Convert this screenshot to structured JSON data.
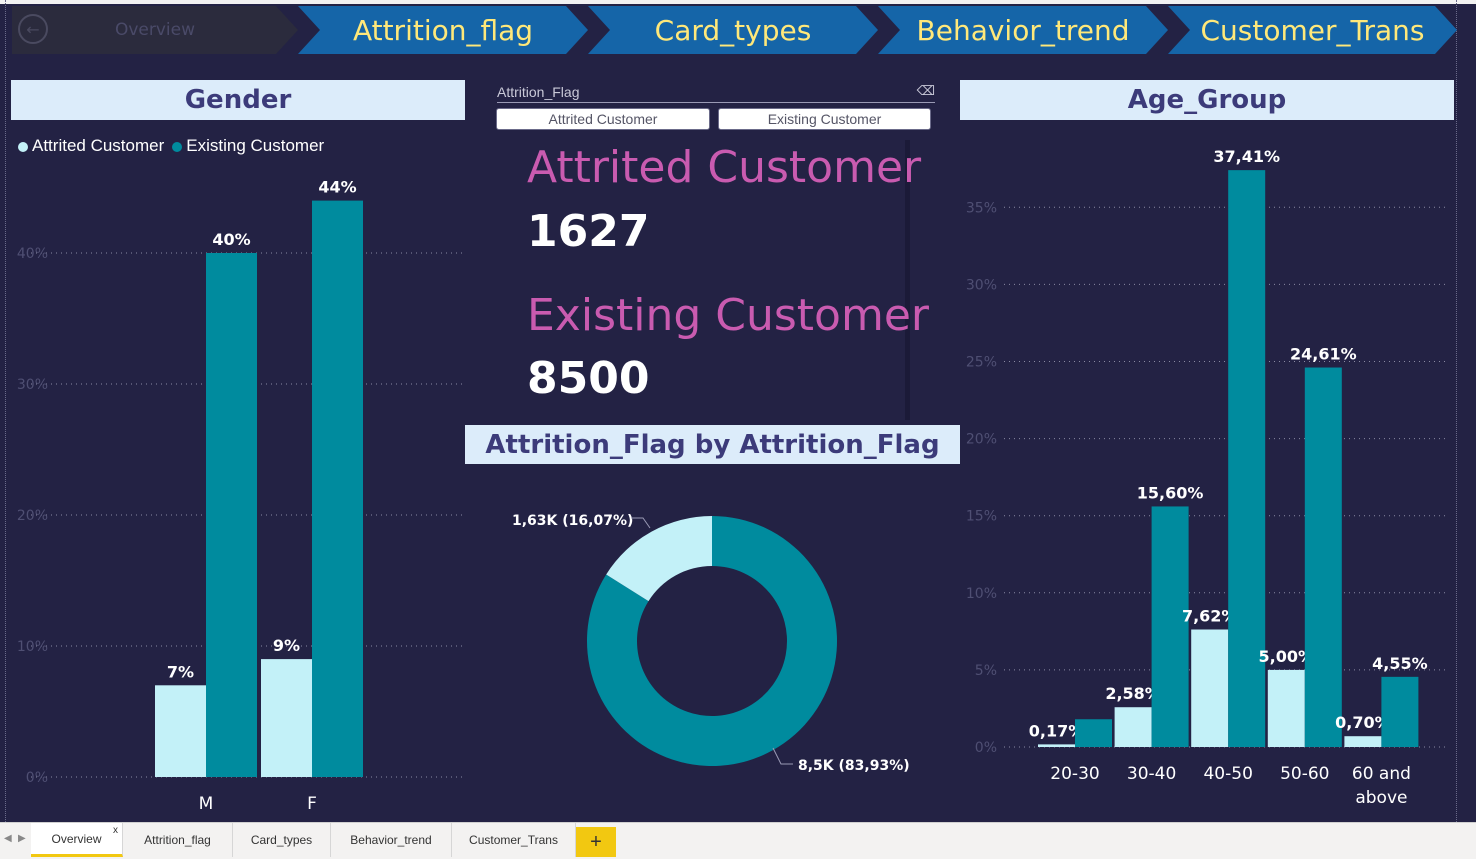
{
  "nav": {
    "items": [
      {
        "label": "Overview"
      },
      {
        "label": "Attrition_flag"
      },
      {
        "label": "Card_types"
      },
      {
        "label": "Behavior_trend"
      },
      {
        "label": "Customer_Trans"
      }
    ]
  },
  "gender": {
    "title": "Gender",
    "legend": [
      "Attrited Customer",
      "Existing Customer"
    ],
    "colors": {
      "attrited": "#c3f1f8",
      "existing": "#008b9e"
    }
  },
  "slicer": {
    "header": "Attrition_Flag",
    "options": [
      "Attrited Customer",
      "Existing Customer"
    ]
  },
  "cards": [
    {
      "label": "Attrited Customer",
      "value": "1627"
    },
    {
      "label": "Existing Customer",
      "value": "8500"
    }
  ],
  "donut": {
    "title": "Attrition_Flag by Attrition_Flag",
    "labels": [
      "1,63K (16,07%)",
      "8,5K (83,93%)"
    ]
  },
  "age": {
    "title": "Age_Group"
  },
  "tabs": [
    "Overview",
    "Attrition_flag",
    "Card_types",
    "Behavior_trend",
    "Customer_Trans"
  ],
  "add_tab": "+",
  "chart_data": [
    {
      "type": "bar",
      "title": "Gender",
      "categories": [
        "M",
        "F"
      ],
      "series": [
        {
          "name": "Attrited Customer",
          "values": [
            7,
            9
          ],
          "labels": [
            "7%",
            "9%"
          ]
        },
        {
          "name": "Existing Customer",
          "values": [
            40,
            44
          ],
          "labels": [
            "40%",
            "44%"
          ]
        }
      ],
      "ylim": [
        0,
        47
      ],
      "yticks": [
        0,
        10,
        20,
        30,
        40
      ],
      "ytick_labels": [
        "0%",
        "10%",
        "20%",
        "30%",
        "40%"
      ],
      "grid": true,
      "legend": "top-left"
    },
    {
      "type": "pie",
      "title": "Attrition_Flag by Attrition_Flag",
      "categories": [
        "Attrited Customer",
        "Existing Customer"
      ],
      "values": [
        1627,
        8500
      ],
      "percent": [
        16.07,
        83.93
      ],
      "labels": [
        "1,63K (16,07%)",
        "8,5K (83,93%)"
      ]
    },
    {
      "type": "bar",
      "title": "Age_Group",
      "categories": [
        "20-30",
        "30-40",
        "40-50",
        "50-60",
        "60 and above"
      ],
      "series": [
        {
          "name": "Attrited Customer",
          "values": [
            0.17,
            2.58,
            7.62,
            5.0,
            0.7
          ],
          "labels": [
            "0,17%",
            "2,58%",
            "7,62%",
            "5,00%",
            "0,70%"
          ]
        },
        {
          "name": "Existing Customer",
          "values": [
            1.8,
            15.6,
            37.41,
            24.61,
            4.55
          ],
          "labels": [
            "",
            "15,60%",
            "37,41%",
            "24,61%",
            "4,55%"
          ]
        }
      ],
      "ylim": [
        0,
        39
      ],
      "yticks": [
        0,
        5,
        10,
        15,
        20,
        25,
        30,
        35
      ],
      "ytick_labels": [
        "0%",
        "5%",
        "10%",
        "15%",
        "20%",
        "25%",
        "30%",
        "35%"
      ],
      "grid": true
    }
  ]
}
